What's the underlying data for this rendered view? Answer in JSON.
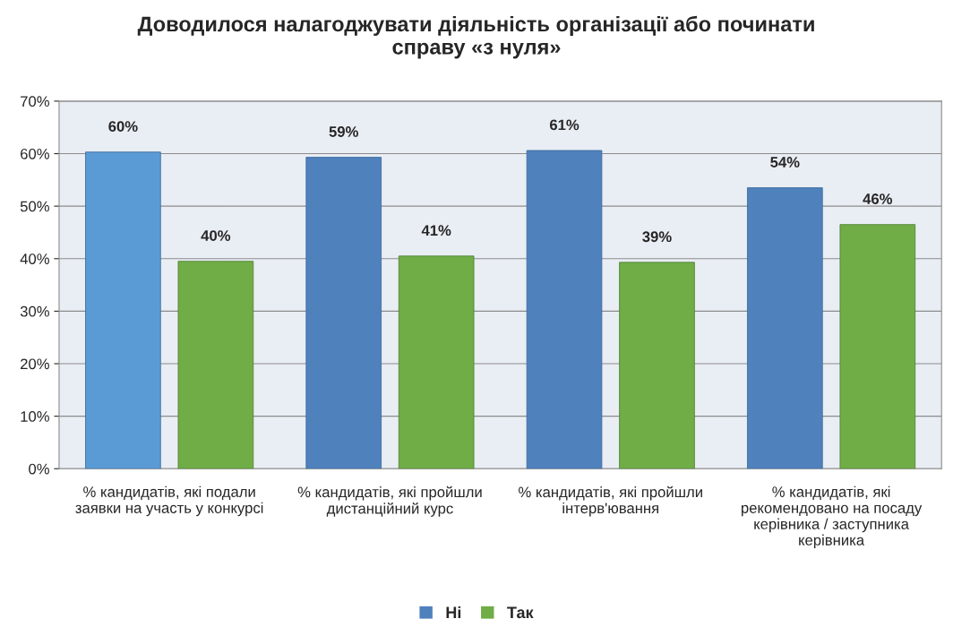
{
  "chart_data": {
    "type": "bar",
    "title": "Доводилося налагоджувати діяльність організації або починати\nсправу «з нуля»",
    "categories": [
      "% кандидатів, які подали\nзаявки на участь у конкурсі",
      "% кандидатів, які пройшли\nдистанційний курс",
      "% кандидатів, які пройшли\nінтерв'ювання",
      "% кандидатів, які\nрекомендовано на посаду\nкерівника / заступника\nкерівника"
    ],
    "series": [
      {
        "name": "Ні",
        "color": "#4f81bd",
        "colors": [
          "#5b9bd5",
          "#4f81bd",
          "#4f81bd",
          "#4f81bd"
        ],
        "values": [
          60.3,
          59.3,
          60.6,
          53.5
        ],
        "value_labels": [
          "60%",
          "59%",
          "61%",
          "54%"
        ]
      },
      {
        "name": "Так",
        "color": "#70ad47",
        "colors": [
          "#70ad47",
          "#70ad47",
          "#70ad47",
          "#70ad47"
        ],
        "values": [
          39.5,
          40.5,
          39.3,
          46.5
        ],
        "value_labels": [
          "40%",
          "41%",
          "39%",
          "46%"
        ]
      }
    ],
    "ylim": [
      0,
      70
    ],
    "yticks": [
      {
        "value": 0,
        "label": "0%"
      },
      {
        "value": 10,
        "label": "10%"
      },
      {
        "value": 20,
        "label": "20%"
      },
      {
        "value": 30,
        "label": "30%"
      },
      {
        "value": 40,
        "label": "40%"
      },
      {
        "value": 50,
        "label": "50%"
      },
      {
        "value": 60,
        "label": "60%"
      },
      {
        "value": 70,
        "label": "70%"
      }
    ],
    "grid": "y",
    "legend": "bottom"
  }
}
